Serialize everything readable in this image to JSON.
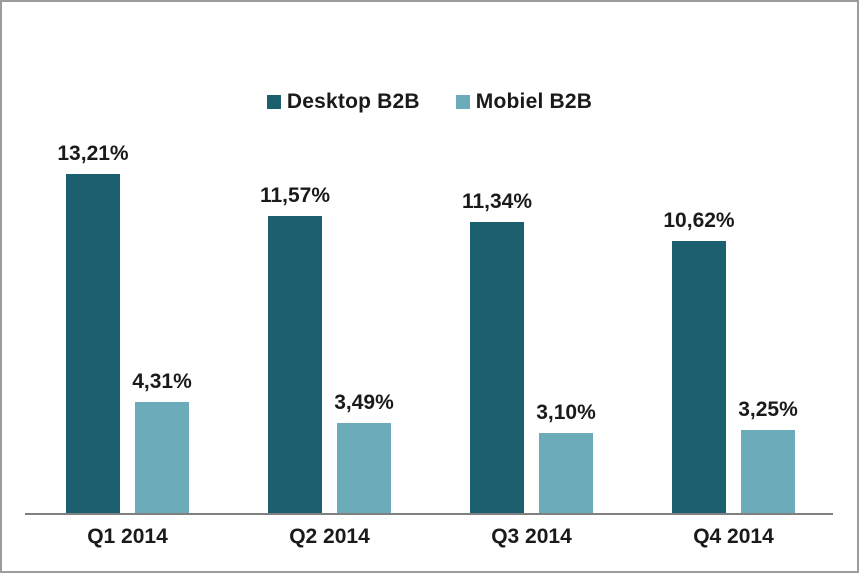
{
  "chart_data": {
    "type": "bar",
    "title": "",
    "xlabel": "",
    "ylabel": "",
    "categories": [
      "Q1 2014",
      "Q2 2014",
      "Q3 2014",
      "Q4 2014"
    ],
    "series": [
      {
        "name": "Desktop B2B",
        "color": "#1c5f6f",
        "values": [
          13.21,
          11.57,
          11.34,
          10.62
        ],
        "value_labels": [
          "13,21%",
          "11,57%",
          "11,34%",
          "10,62%"
        ]
      },
      {
        "name": "Mobiel B2B",
        "color": "#6cabb9",
        "values": [
          4.31,
          3.49,
          3.1,
          3.25
        ],
        "value_labels": [
          "4,31%",
          "3,49%",
          "3,10%",
          "3,25%"
        ]
      }
    ],
    "ylim": [
      0,
      14
    ],
    "grid": false,
    "y_axis_visible": false,
    "legend_position": "top-center",
    "axis_color": "#808080",
    "label_color": "#1a1a1a",
    "background_color": "#ffffff"
  }
}
